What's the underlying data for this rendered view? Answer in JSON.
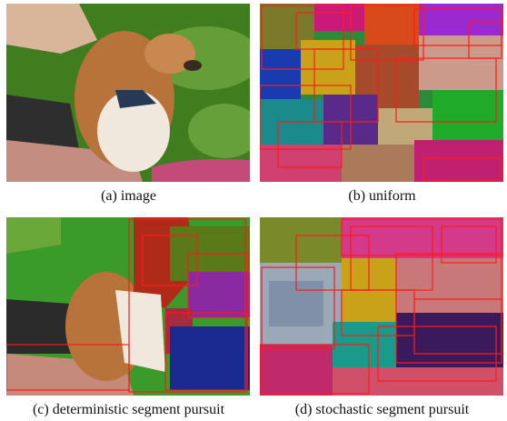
{
  "figure": {
    "panels": [
      {
        "id": "a",
        "caption": "(a) image",
        "overlay": "none"
      },
      {
        "id": "b",
        "caption": "(b) uniform",
        "overlay": "dense-segments-with-boxes"
      },
      {
        "id": "c",
        "caption": "(c) deterministic segment pursuit",
        "overlay": "few-segments-with-boxes"
      },
      {
        "id": "d",
        "caption": "(d) stochastic segment pursuit",
        "overlay": "many-segments-with-boxes"
      }
    ],
    "colors": {
      "grass": "#3f7d1f",
      "box_outline": "#ff1a1a"
    }
  }
}
